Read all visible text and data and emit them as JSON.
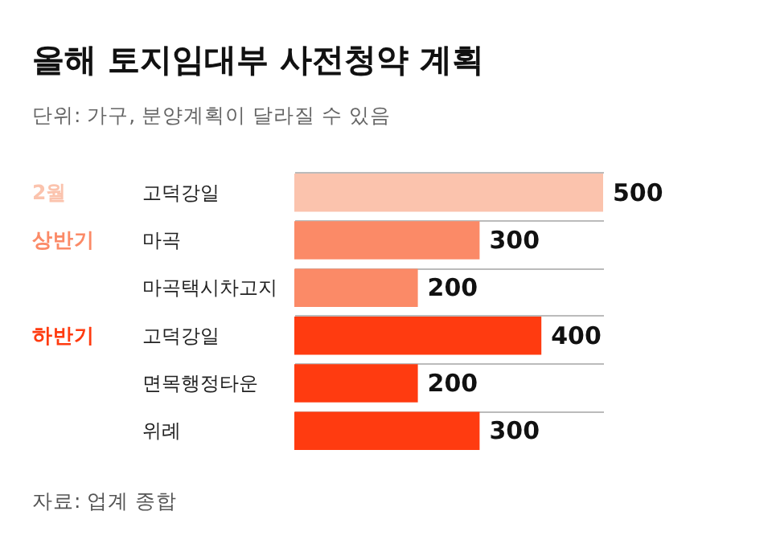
{
  "chart_data": {
    "type": "bar",
    "orientation": "horizontal",
    "title": "올해 토지임대부 사전청약 계획",
    "subtitle": "단위: 가구, 분양계획이 달라질 수 있음",
    "categories": [
      "고덕강일",
      "마곡",
      "마곡택시차고지",
      "고덕강일",
      "면목행정타운",
      "위례"
    ],
    "values": [
      500,
      300,
      200,
      400,
      200,
      300
    ],
    "colors": [
      "#fbc3ad",
      "#fb8a67",
      "#fb8a67",
      "#ff3b10",
      "#ff3b10",
      "#ff3b10"
    ],
    "data_labels": true,
    "grid": "y",
    "annotations": [
      "2월",
      "상반기",
      "하반기",
      "자료: 업계 종합"
    ]
  }
}
